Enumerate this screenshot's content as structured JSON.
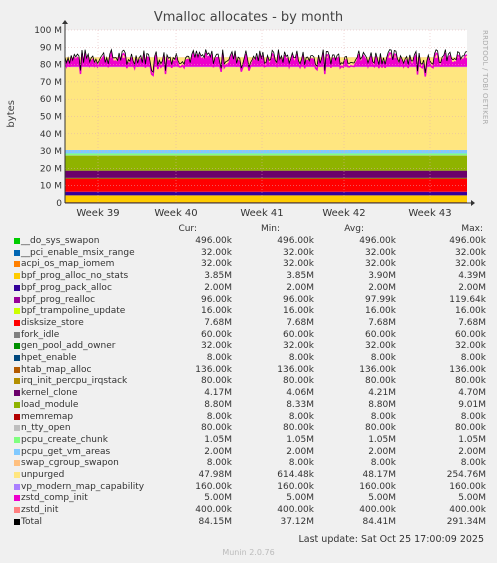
{
  "title": "Vmalloc allocates - by month",
  "side_label": "RRDTOOL / TOBI OETIKER",
  "footer": "Last update: Sat Oct 25 17:00:09 2025",
  "generator": "Munin 2.0.76",
  "legend_headers": [
    "Cur:",
    "Min:",
    "Avg:",
    "Max:"
  ],
  "chart_data": {
    "type": "area",
    "stacked": true,
    "ylabel": "bytes",
    "ylim": [
      0,
      100
    ],
    "y_unit": "M",
    "yticks": [
      "0",
      "10 M",
      "20 M",
      "30 M",
      "40 M",
      "50 M",
      "60 M",
      "70 M",
      "80 M",
      "90 M",
      "100 M"
    ],
    "x_labels": [
      "Week 39",
      "Week 40",
      "Week 41",
      "Week 42",
      "Week 43"
    ],
    "grid": true,
    "series": [
      {
        "name": "__do_sys_swapon",
        "color": "#00cc00",
        "cur": "496.00k",
        "min": "496.00k",
        "avg": "496.00k",
        "max": "496.00k",
        "value_m": 0.5
      },
      {
        "name": "__pci_enable_msix_range",
        "color": "#0066b3",
        "cur": "32.00k",
        "min": "32.00k",
        "avg": "32.00k",
        "max": "32.00k",
        "value_m": 0.03
      },
      {
        "name": "acpi_os_map_iomem",
        "color": "#ff8000",
        "cur": "32.00k",
        "min": "32.00k",
        "avg": "32.00k",
        "max": "32.00k",
        "value_m": 0.03
      },
      {
        "name": "bpf_prog_alloc_no_stats",
        "color": "#ffcc00",
        "cur": "3.85M",
        "min": "3.85M",
        "avg": "3.90M",
        "max": "4.39M",
        "value_m": 3.85
      },
      {
        "name": "bpf_prog_pack_alloc",
        "color": "#330099",
        "cur": "2.00M",
        "min": "2.00M",
        "avg": "2.00M",
        "max": "2.00M",
        "value_m": 2.0
      },
      {
        "name": "bpf_prog_realloc",
        "color": "#990099",
        "cur": "96.00k",
        "min": "96.00k",
        "avg": "97.99k",
        "max": "119.64k",
        "value_m": 0.1
      },
      {
        "name": "bpf_trampoline_update",
        "color": "#ccff00",
        "cur": "16.00k",
        "min": "16.00k",
        "avg": "16.00k",
        "max": "16.00k",
        "value_m": 0.02
      },
      {
        "name": "disksize_store",
        "color": "#ff0000",
        "cur": "7.68M",
        "min": "7.68M",
        "avg": "7.68M",
        "max": "7.68M",
        "value_m": 7.68
      },
      {
        "name": "fork_idle",
        "color": "#808080",
        "cur": "60.00k",
        "min": "60.00k",
        "avg": "60.00k",
        "max": "60.00k",
        "value_m": 0.06
      },
      {
        "name": "gen_pool_add_owner",
        "color": "#008f00",
        "cur": "32.00k",
        "min": "32.00k",
        "avg": "32.00k",
        "max": "32.00k",
        "value_m": 0.03
      },
      {
        "name": "hpet_enable",
        "color": "#00487d",
        "cur": "8.00k",
        "min": "8.00k",
        "avg": "8.00k",
        "max": "8.00k",
        "value_m": 0.01
      },
      {
        "name": "htab_map_alloc",
        "color": "#b35a00",
        "cur": "136.00k",
        "min": "136.00k",
        "avg": "136.00k",
        "max": "136.00k",
        "value_m": 0.14
      },
      {
        "name": "irq_init_percpu_irqstack",
        "color": "#b38f00",
        "cur": "80.00k",
        "min": "80.00k",
        "avg": "80.00k",
        "max": "80.00k",
        "value_m": 0.08
      },
      {
        "name": "kernel_clone",
        "color": "#6b006b",
        "cur": "4.17M",
        "min": "4.06M",
        "avg": "4.21M",
        "max": "4.70M",
        "value_m": 4.17
      },
      {
        "name": "load_module",
        "color": "#8fb300",
        "cur": "8.80M",
        "min": "8.33M",
        "avg": "8.80M",
        "max": "9.01M",
        "value_m": 8.8
      },
      {
        "name": "memremap",
        "color": "#b30000",
        "cur": "8.00k",
        "min": "8.00k",
        "avg": "8.00k",
        "max": "8.00k",
        "value_m": 0.01
      },
      {
        "name": "n_tty_open",
        "color": "#bebebe",
        "cur": "80.00k",
        "min": "80.00k",
        "avg": "80.00k",
        "max": "80.00k",
        "value_m": 0.08
      },
      {
        "name": "pcpu_create_chunk",
        "color": "#80ff80",
        "cur": "1.05M",
        "min": "1.05M",
        "avg": "1.05M",
        "max": "1.05M",
        "value_m": 1.05
      },
      {
        "name": "pcpu_get_vm_areas",
        "color": "#80c9ff",
        "cur": "2.00M",
        "min": "2.00M",
        "avg": "2.00M",
        "max": "2.00M",
        "value_m": 2.0
      },
      {
        "name": "swap_cgroup_swapon",
        "color": "#ffc080",
        "cur": "8.00k",
        "min": "8.00k",
        "avg": "8.00k",
        "max": "8.00k",
        "value_m": 0.01
      },
      {
        "name": "unpurged",
        "color": "#ffe680",
        "cur": "47.98M",
        "min": "614.48k",
        "avg": "48.17M",
        "max": "254.76M",
        "value_m": 47.98
      },
      {
        "name": "vp_modern_map_capability",
        "color": "#aa80ff",
        "cur": "160.00k",
        "min": "160.00k",
        "avg": "160.00k",
        "max": "160.00k",
        "value_m": 0.16
      },
      {
        "name": "zstd_comp_init",
        "color": "#ee00cc",
        "cur": "5.00M",
        "min": "5.00M",
        "avg": "5.00M",
        "max": "5.00M",
        "value_m": 5.0
      },
      {
        "name": "zstd_init",
        "color": "#ff8080",
        "cur": "400.00k",
        "min": "400.00k",
        "avg": "400.00k",
        "max": "400.00k",
        "value_m": 0.4
      },
      {
        "name": "Total",
        "color": "#000000",
        "cur": "84.15M",
        "min": "37.12M",
        "avg": "84.41M",
        "max": "291.34M",
        "value_m": 84.15
      }
    ]
  }
}
